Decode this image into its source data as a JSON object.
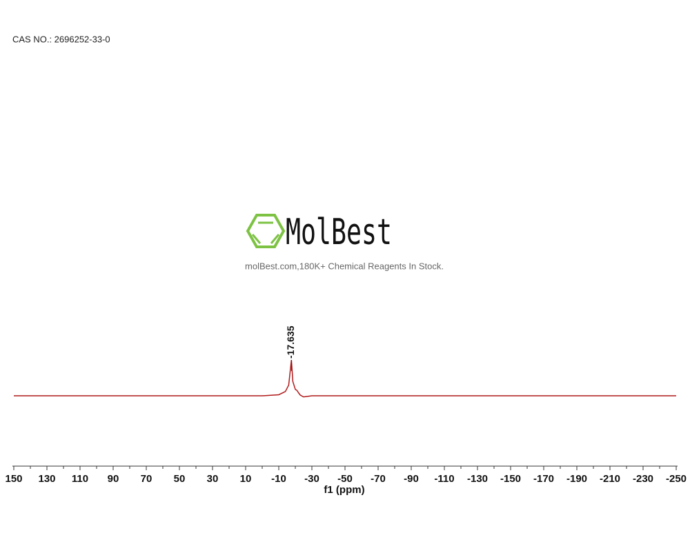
{
  "chart_data": {
    "type": "line",
    "title": "CAS NO.: 2696252-33-0",
    "watermark_logo": "MolBest",
    "watermark_text": "molBest.com,180K+ Chemical Reagents In Stock.",
    "x_label": "f1 (ppm)",
    "x": [
      150,
      60,
      0,
      -10,
      -14,
      -16,
      -17.635,
      -18.5,
      -20,
      -21,
      -22,
      -23,
      -25,
      -30,
      -100,
      -250
    ],
    "series": [
      {
        "color": "#b01818",
        "values": [
          0,
          0,
          0,
          0.3,
          1.2,
          3,
          10,
          4,
          1.8,
          1.5,
          0.8,
          0.2,
          -0.3,
          0,
          0,
          0
        ]
      }
    ],
    "peaks": [
      -17.635
    ],
    "xlim": [
      151,
      -251
    ],
    "ylim": [
      -19.6,
      20
    ],
    "xticks": [
      150,
      130,
      110,
      90,
      70,
      50,
      30,
      10,
      -10,
      -30,
      -50,
      -70,
      -90,
      -110,
      -130,
      -150,
      -170,
      -190,
      -210,
      -230,
      -250
    ],
    "xminor_ticks": [
      140,
      120,
      100,
      80,
      60,
      40,
      20,
      0,
      -20,
      -40,
      -60,
      -80,
      -100,
      -120,
      -140,
      -160,
      -180,
      -200,
      -220,
      -240
    ]
  }
}
